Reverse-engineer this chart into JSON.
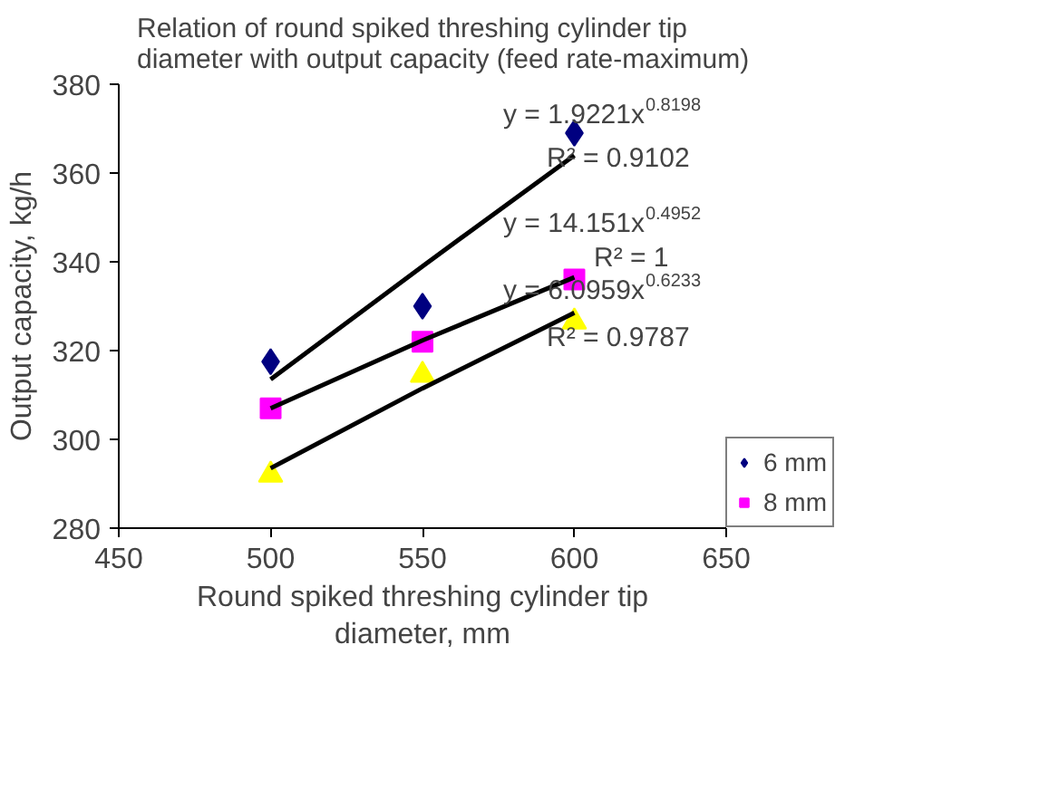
{
  "chart_data": {
    "type": "scatter",
    "title": "Relation of round spiked threshing cylinder tip diameter with output capacity (feed rate-maximum)",
    "xlabel": "Round spiked threshing cylinder tip diameter, mm",
    "ylabel": "Output capacity, kg/h",
    "xlim": [
      450,
      650
    ],
    "xticks": [
      450,
      500,
      550,
      600,
      650
    ],
    "ylim": [
      280,
      380
    ],
    "yticks": [
      280,
      300,
      320,
      340,
      360,
      380
    ],
    "grid": false,
    "legend": "bottom right",
    "series": [
      {
        "name": "6 mm",
        "color": "#000080",
        "marker": "diamond",
        "x": [
          500,
          550,
          600
        ],
        "values": [
          317.5,
          330,
          369
        ]
      },
      {
        "name": "8 mm",
        "color": "#ff00ff",
        "marker": "square",
        "x": [
          500,
          550,
          600
        ],
        "values": [
          307,
          322,
          336
        ]
      },
      {
        "color": "#ffff00",
        "marker": "triangle",
        "x": [
          500,
          550,
          600
        ],
        "values": [
          292,
          314.5,
          326.5
        ]
      },
      {
        "type": "line",
        "color": "#000000",
        "marker": "none",
        "x": [
          500,
          550,
          600
        ],
        "values": [
          313.5,
          339,
          364
        ]
      },
      {
        "type": "line",
        "color": "#000000",
        "marker": "none",
        "x": [
          500,
          550,
          600
        ],
        "values": [
          307,
          322.3,
          336.5
        ]
      },
      {
        "type": "line",
        "color": "#000000",
        "marker": "none",
        "x": [
          500,
          550,
          600
        ],
        "values": [
          293.5,
          311.5,
          328.5
        ]
      }
    ],
    "annotations": [
      "y = 1.9221x$^{0.8198}$",
      "R² = 0.9102",
      "y = 14.151x$^{0.4952}$",
      "R² = 1",
      "y = 6.0959x$^{0.6233}$",
      "R² = 0.9787"
    ]
  }
}
